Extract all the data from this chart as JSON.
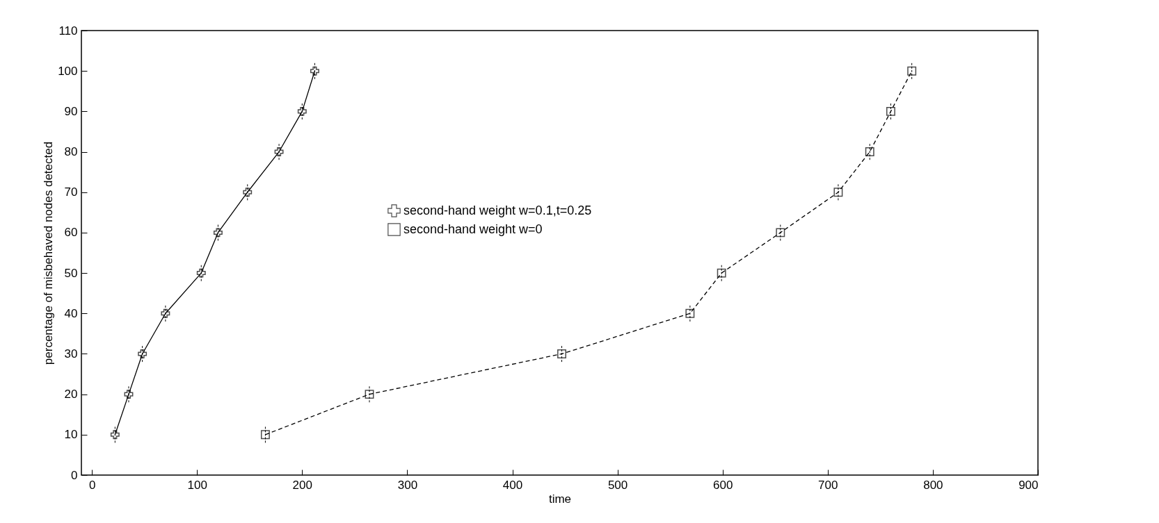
{
  "chart_data": {
    "type": "line",
    "xlabel": "time",
    "ylabel": "percentage of misbehaved nodes detected",
    "xlim": [
      -10,
      900
    ],
    "xticks": [
      0,
      100,
      200,
      300,
      400,
      500,
      600,
      700,
      800,
      900
    ],
    "ylim": [
      0,
      110
    ],
    "yticks": [
      0,
      10,
      20,
      30,
      40,
      50,
      60,
      70,
      80,
      90,
      100,
      110
    ],
    "grid": false,
    "legend": "center",
    "series": [
      {
        "name": "second-hand weight w=0.1,t=0.25",
        "color": "#000000",
        "marker": "cross",
        "line_style": "solid",
        "x": [
          22,
          35,
          48,
          70,
          104,
          120,
          148,
          178,
          200,
          212
        ],
        "values": [
          10,
          20,
          30,
          40,
          50,
          60,
          70,
          80,
          90,
          100
        ],
        "errors": [
          2,
          2,
          2,
          2,
          2,
          2,
          2,
          2,
          2,
          2
        ]
      },
      {
        "name": "second-hand weight w=0",
        "color": "#000000",
        "marker": "square",
        "line_style": "dashed",
        "x": [
          165,
          264,
          447,
          569,
          599,
          655,
          710,
          740,
          760,
          780
        ],
        "values": [
          10,
          20,
          30,
          40,
          50,
          60,
          70,
          80,
          90,
          100
        ],
        "errors": [
          2,
          2,
          2,
          2,
          2,
          2,
          2,
          2,
          2,
          2
        ]
      }
    ]
  }
}
